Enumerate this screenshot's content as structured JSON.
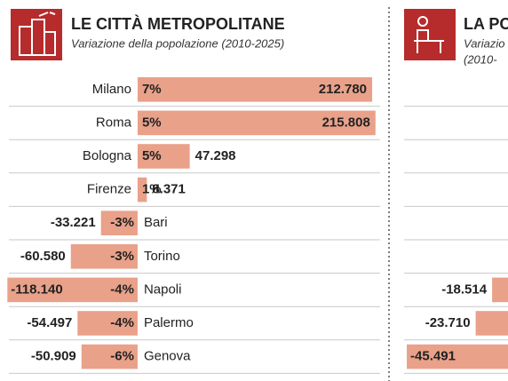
{
  "chart_data": [
    {
      "type": "bar",
      "orientation": "horizontal",
      "title": "LE CITTÀ METROPOLITANE",
      "subtitle": "Variazione della popolazione (2010-2025)",
      "categories": [
        "Milano",
        "Roma",
        "Bologna",
        "Firenze",
        "Bari",
        "Torino",
        "Napoli",
        "Palermo",
        "Genova"
      ],
      "values": [
        212780,
        215808,
        47298,
        8371,
        -33221,
        -60580,
        -118140,
        -54497,
        -50909
      ],
      "value_labels": [
        "212.780",
        "215.808",
        "47.298",
        "8.371",
        "-33.221",
        "-60.580",
        "-118.140",
        "-54.497",
        "-50.909"
      ],
      "percent": [
        7,
        5,
        5,
        1,
        -3,
        -3,
        -4,
        -4,
        -6
      ],
      "percent_labels": [
        "7%",
        "5%",
        "5%",
        "1%",
        "-3%",
        "-3%",
        "-4%",
        "-4%",
        "-6%"
      ],
      "color": "#e9a189",
      "xlim": [
        -120000,
        220000
      ]
    },
    {
      "type": "bar",
      "orientation": "horizontal",
      "title": "LA PO",
      "subtitle": "Variazio",
      "subtitle2": "(2010-",
      "categories": [
        null,
        null,
        null,
        null,
        null,
        null,
        null,
        null,
        null
      ],
      "values": [
        null,
        null,
        null,
        null,
        null,
        null,
        -18514,
        -23710,
        -45491
      ],
      "value_labels": [
        null,
        null,
        null,
        null,
        null,
        null,
        "-18.514",
        "-23.710",
        "-45.491"
      ],
      "color": "#e9a189",
      "xlim": [
        -50000,
        0
      ]
    }
  ]
}
